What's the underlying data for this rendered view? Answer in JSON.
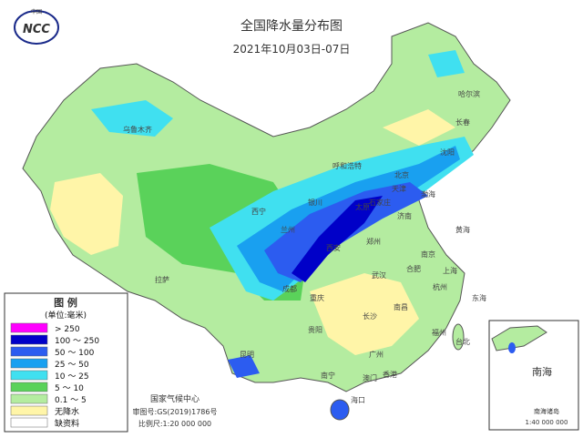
{
  "logo": {
    "top": "中国",
    "name": "NCC"
  },
  "header": {
    "title": "全国降水量分布图",
    "subtitle": "2021年10月03日-07日"
  },
  "legend": {
    "title": "图 例",
    "unit": "(单位:毫米)",
    "items": [
      {
        "label": "> 250",
        "color": "#ff00ff"
      },
      {
        "label": "100 ～ 250",
        "color": "#0000c8"
      },
      {
        "label": "50 ～ 100",
        "color": "#2c5cf0"
      },
      {
        "label": "25 ～ 50",
        "color": "#19a0f0"
      },
      {
        "label": "10 ～ 25",
        "color": "#40e0f0"
      },
      {
        "label": "5 ～ 10",
        "color": "#5ad25a"
      },
      {
        "label": "0.1 ～ 5",
        "color": "#b4eca0"
      },
      {
        "label": "无降水",
        "color": "#fff5a8"
      },
      {
        "label": "缺资料",
        "color": "#ffffff"
      }
    ]
  },
  "cities": [
    "乌鲁木齐",
    "哈尔滨",
    "长春",
    "沈阳",
    "呼和浩特",
    "北京",
    "天津",
    "银川",
    "太原",
    "石家庄",
    "济南",
    "西宁",
    "兰州",
    "郑州",
    "西安",
    "合肥",
    "南京",
    "上海",
    "拉萨",
    "成都",
    "重庆",
    "武汉",
    "杭州",
    "长沙",
    "南昌",
    "贵阳",
    "福州",
    "台北",
    "昆明",
    "广州",
    "南宁",
    "澳门",
    "香港",
    "海口"
  ],
  "seas": [
    "渤海",
    "黄海",
    "东海",
    "南海"
  ],
  "footer": {
    "org": "国家气候中心",
    "approval": "审图号:GS(2019)1786号",
    "scale": "比例尺:1:20 000 000"
  },
  "inset": {
    "title": "南海诸岛",
    "scale": "1:40 000 000"
  }
}
